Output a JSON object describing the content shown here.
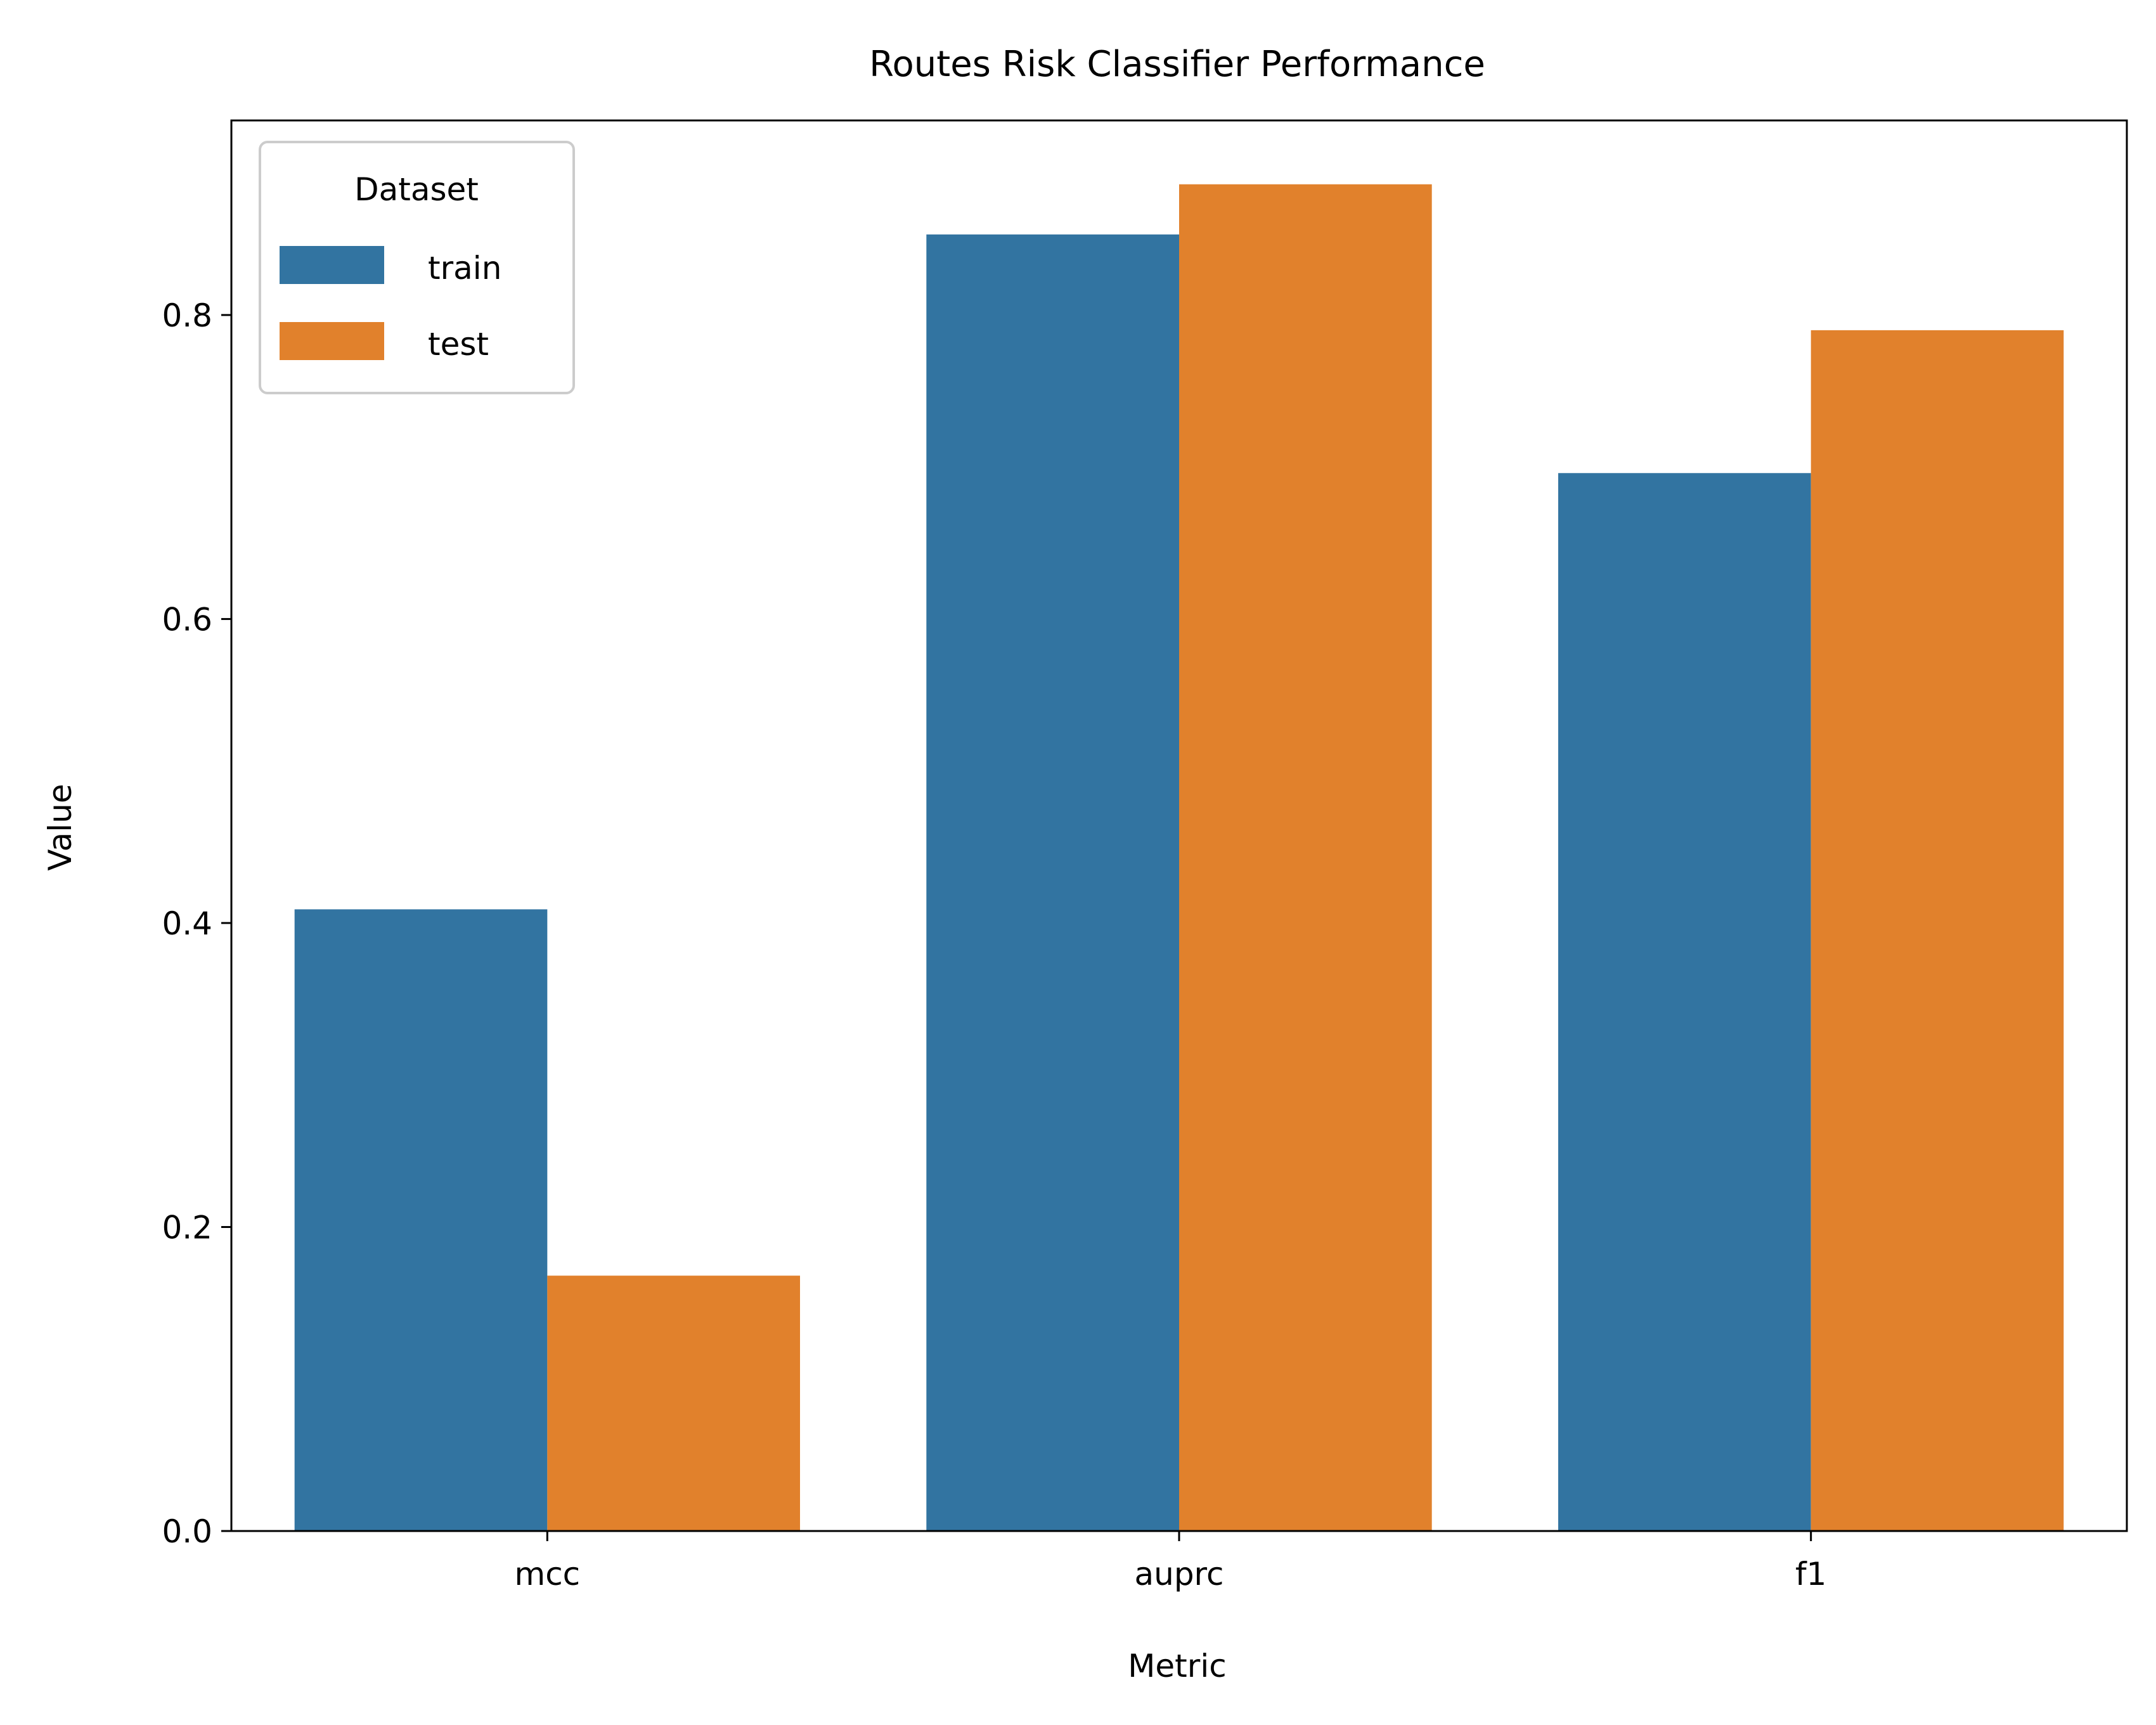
{
  "chart_data": {
    "type": "bar",
    "title": "Routes Risk Classifier Performance",
    "xlabel": "Metric",
    "ylabel": "Value",
    "categories": [
      "mcc",
      "auprc",
      "f1"
    ],
    "series": [
      {
        "name": "train",
        "color": "#3274a1",
        "values": [
          0.409,
          0.853,
          0.696
        ]
      },
      {
        "name": "test",
        "color": "#e1812c",
        "values": [
          0.168,
          0.886,
          0.79
        ]
      }
    ],
    "ylim": [
      0,
      0.928
    ],
    "yticks": [
      0.0,
      0.2,
      0.4,
      0.6,
      0.8
    ],
    "ytick_labels": [
      "0.0",
      "0.2",
      "0.4",
      "0.6",
      "0.8"
    ],
    "grid": false,
    "legend": {
      "title": "Dataset",
      "position": "top-left"
    }
  }
}
